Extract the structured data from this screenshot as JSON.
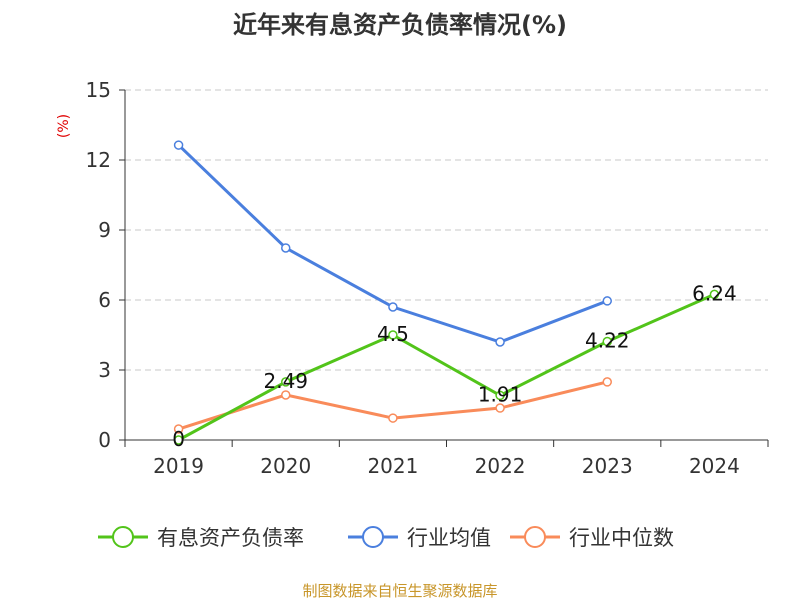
{
  "chart_data": {
    "type": "line",
    "title": "近年来有息资产负债率情况(%)",
    "ylabel": "(%)",
    "xlabel": "",
    "categories": [
      "2019",
      "2020",
      "2021",
      "2022",
      "2023",
      "2024"
    ],
    "ylim": [
      0,
      15
    ],
    "yticks": [
      0,
      3,
      6,
      9,
      12,
      15
    ],
    "grid": true,
    "legend_position": "bottom",
    "series": [
      {
        "name": "有息资产负债率",
        "color": "#52c41a",
        "values": [
          0,
          2.49,
          4.5,
          1.91,
          4.22,
          6.24
        ],
        "labels": [
          "0",
          "2.49",
          "4.5",
          "1.91",
          "4.22",
          "6.24"
        ]
      },
      {
        "name": "行业均值",
        "color": "#4a7fde",
        "values": [
          12.64,
          8.23,
          5.7,
          4.2,
          5.96,
          null
        ]
      },
      {
        "name": "行业中位数",
        "color": "#f98b5a",
        "values": [
          0.47,
          1.93,
          0.94,
          1.37,
          2.49,
          null
        ]
      }
    ],
    "source": "制图数据来自恒生聚源数据库"
  }
}
